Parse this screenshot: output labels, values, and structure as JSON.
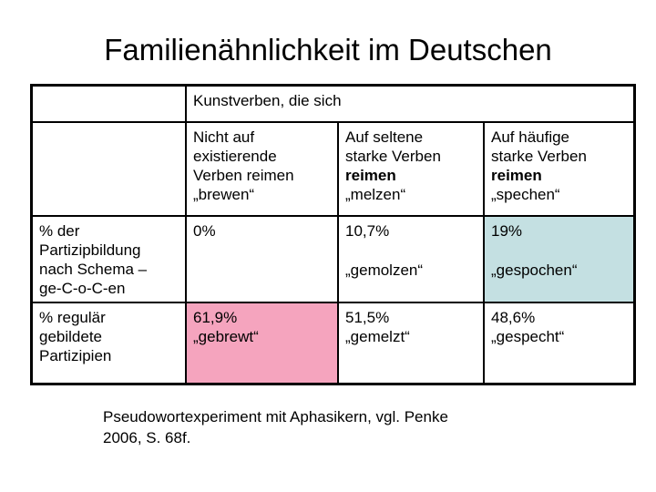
{
  "title": "Familienähnlichkeit im Deutschen",
  "table": {
    "top_header": "Kunstverben, die sich",
    "headers": {
      "nonexistent": {
        "l1": "Nicht auf",
        "l2": "existierende",
        "l3": "Verben reimen",
        "l4": "„brewen“"
      },
      "rare_strong": {
        "l1": "Auf seltene",
        "l2": "starke Verben",
        "l3": "reimen",
        "l4": "„melzen“"
      },
      "frequent_strong": {
        "l1": "Auf häufige",
        "l2": "starke Verben",
        "l3": "reimen",
        "l4": "„spechen“"
      }
    },
    "rows": {
      "schema": {
        "label_l1": "% der",
        "label_l2": "Partizipbildung",
        "label_l3": "nach Schema –",
        "label_l4": "ge-C-o-C-en",
        "nonexistent_value": "0%",
        "rare_value": "10,7%",
        "rare_word": "„gemolzen“",
        "frequent_value": "19%",
        "frequent_word": "„gespochen“"
      },
      "regular": {
        "label_l1": "% regulär",
        "label_l2": "gebildete",
        "label_l3": "Partizipien",
        "nonexistent_value": "61,9%",
        "nonexistent_word": "„gebrewt“",
        "rare_value": "51,5%",
        "rare_word": "„gemelzt“",
        "frequent_value": "48,6%",
        "frequent_word": "„gespecht“"
      }
    }
  },
  "footer": {
    "line1": "Pseudowortexperiment mit Aphasikern, vgl. Penke",
    "line2": "2006, S. 68f."
  },
  "colors": {
    "highlight_pink": "#f5a4be",
    "highlight_blue": "#c4e0e2",
    "border": "#000000"
  }
}
